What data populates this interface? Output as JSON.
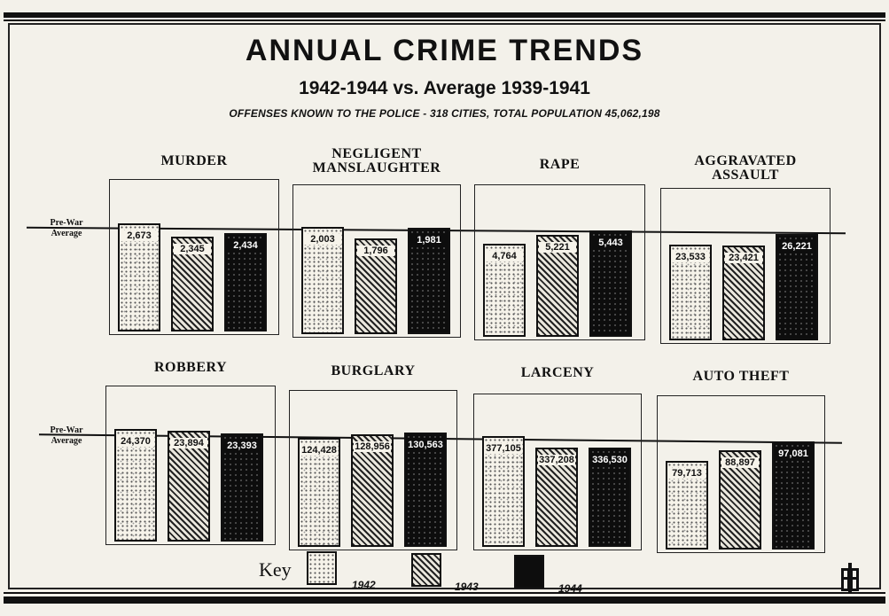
{
  "header": {
    "title": "ANNUAL CRIME TRENDS",
    "subtitle": "1942-1944 vs. Average 1939-1941",
    "note": "OFFENSES KNOWN TO THE POLICE - 318 CITIES, TOTAL POPULATION 45,062,198"
  },
  "prewar_label_line1": "Pre-War",
  "prewar_label_line2": "Average",
  "key": {
    "label": "Key",
    "years": [
      "1942",
      "1943",
      "1944"
    ]
  },
  "colors": {
    "ink": "#111111",
    "paper": "#f3f1ea",
    "bar_1944": "#0d0d0d"
  },
  "chart_data": [
    {
      "type": "bar",
      "title": "MURDER",
      "categories": [
        "1942",
        "1943",
        "1944"
      ],
      "values": [
        2673,
        2345,
        2434
      ],
      "labels": [
        "2,673",
        "2,345",
        "2,434"
      ]
    },
    {
      "type": "bar",
      "title": "NEGLIGENT MANSLAUGHTER",
      "categories": [
        "1942",
        "1943",
        "1944"
      ],
      "values": [
        2003,
        1796,
        1981
      ],
      "labels": [
        "2,003",
        "1,796",
        "1,981"
      ]
    },
    {
      "type": "bar",
      "title": "RAPE",
      "categories": [
        "1942",
        "1943",
        "1944"
      ],
      "values": [
        4764,
        5221,
        5443
      ],
      "labels": [
        "4,764",
        "5,221",
        "5,443"
      ]
    },
    {
      "type": "bar",
      "title": "AGGRAVATED ASSAULT",
      "categories": [
        "1942",
        "1943",
        "1944"
      ],
      "values": [
        23533,
        23421,
        26221
      ],
      "labels": [
        "23,533",
        "23,421",
        "26,221"
      ]
    },
    {
      "type": "bar",
      "title": "ROBBERY",
      "categories": [
        "1942",
        "1943",
        "1944"
      ],
      "values": [
        24370,
        23894,
        23393
      ],
      "labels": [
        "24,370",
        "23,894",
        "23,393"
      ]
    },
    {
      "type": "bar",
      "title": "BURGLARY",
      "categories": [
        "1942",
        "1943",
        "1944"
      ],
      "values": [
        124428,
        128956,
        130563
      ],
      "labels": [
        "124,428",
        "128,956",
        "130,563"
      ]
    },
    {
      "type": "bar",
      "title": "LARCENY",
      "categories": [
        "1942",
        "1943",
        "1944"
      ],
      "values": [
        377105,
        337208,
        336530
      ],
      "labels": [
        "377,105",
        "337,208",
        "336,530"
      ]
    },
    {
      "type": "bar",
      "title": "AUTO THEFT",
      "categories": [
        "1942",
        "1943",
        "1944"
      ],
      "values": [
        79713,
        88897,
        97081
      ],
      "labels": [
        "79,713",
        "88,897",
        "97,081"
      ]
    }
  ]
}
